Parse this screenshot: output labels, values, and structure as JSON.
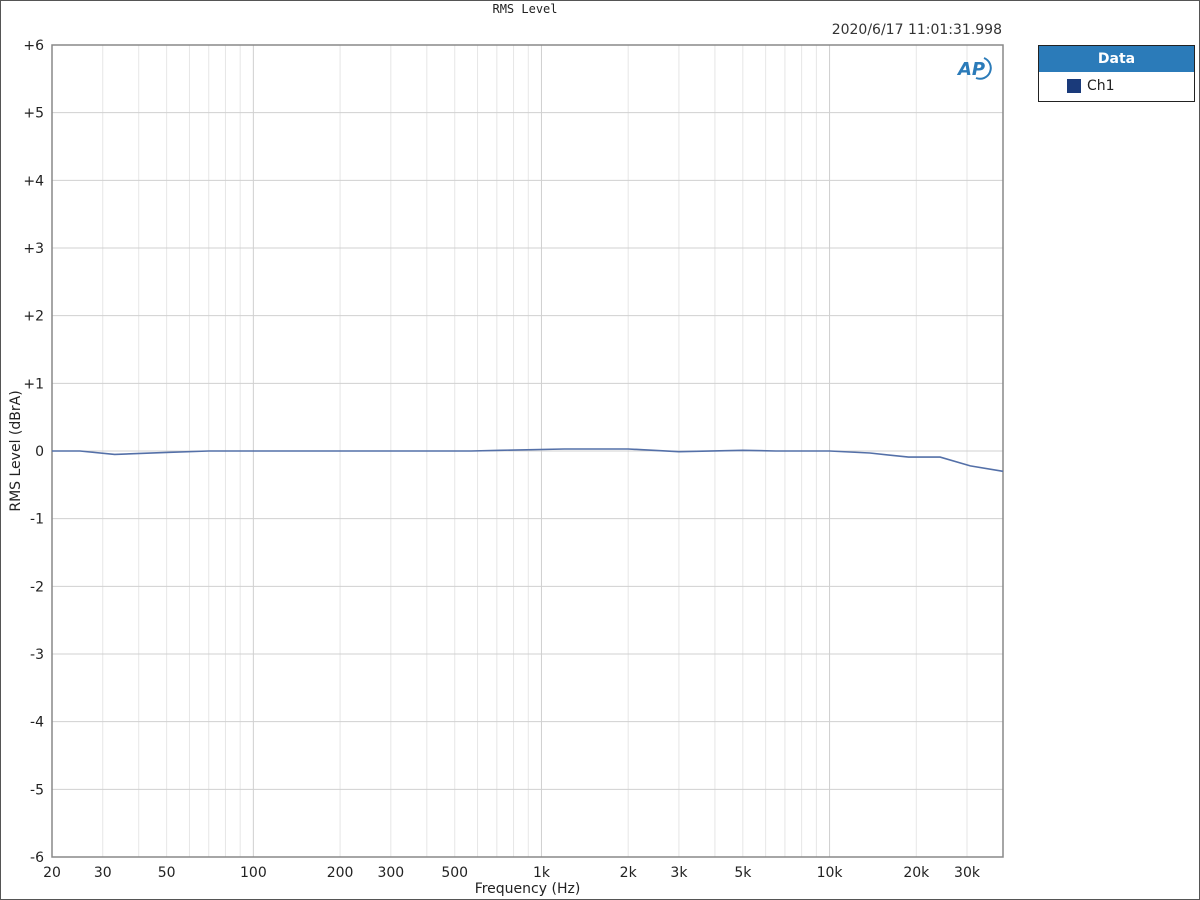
{
  "chart_data": {
    "type": "line",
    "title": "RMS Level",
    "timestamp": "2020/6/17 11:01:31.998",
    "xlabel": "Frequency (Hz)",
    "ylabel": "RMS Level (dBrA)",
    "xscale": "log",
    "xlim": [
      20,
      40000
    ],
    "ylim": [
      -6,
      6
    ],
    "grid": true,
    "legend_position": "outside-top-right",
    "legend_title": "Data",
    "x_ticks": [
      20,
      30,
      50,
      100,
      200,
      300,
      500,
      1000,
      2000,
      3000,
      5000,
      10000,
      20000,
      30000
    ],
    "x_tick_labels": [
      "20",
      "30",
      "50",
      "100",
      "200",
      "300",
      "500",
      "1k",
      "2k",
      "3k",
      "5k",
      "10k",
      "20k",
      "30k"
    ],
    "y_ticks": [
      6,
      5,
      4,
      3,
      2,
      1,
      0,
      -1,
      -2,
      -3,
      -4,
      -5,
      -6
    ],
    "y_tick_labels": [
      "+6",
      "+5",
      "+4",
      "+3",
      "+2",
      "+1",
      "0",
      "-1",
      "-2",
      "-3",
      "-4",
      "-5",
      "-6"
    ],
    "series": [
      {
        "name": "Ch1",
        "color": "#5470a8",
        "legend_color": "#1a3a7a",
        "x": [
          20,
          25,
          33,
          50,
          70,
          200,
          570,
          720,
          1200,
          2000,
          3000,
          5000,
          6500,
          10000,
          13800,
          18800,
          24200,
          30800,
          40000
        ],
        "y": [
          0,
          0,
          -0.05,
          -0.02,
          0,
          0,
          0,
          0.01,
          0.03,
          0.03,
          -0.01,
          0.01,
          0,
          0,
          -0.03,
          -0.09,
          -0.09,
          -0.22,
          -0.3
        ]
      }
    ]
  },
  "logo": "AP"
}
